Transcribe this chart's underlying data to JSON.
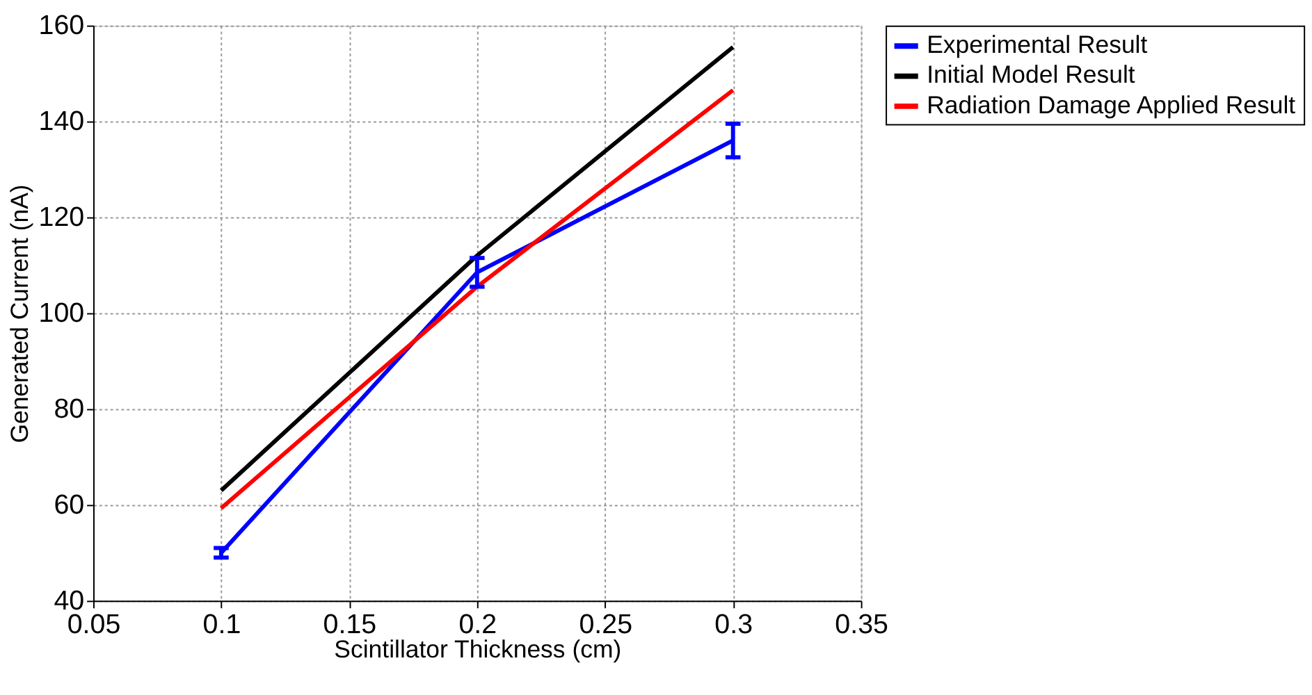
{
  "chart_data": {
    "type": "line",
    "xlabel": "Scintillator Thickness (cm)",
    "ylabel": "Generated Current (nA)",
    "x": [
      0.1,
      0.2,
      0.3
    ],
    "series": [
      {
        "name": "Experimental Result",
        "color": "#0000ff",
        "values": [
          50,
          108.5,
          136
        ],
        "errors": [
          1,
          3,
          3.5
        ]
      },
      {
        "name": "Initial Model Result",
        "color": "#000000",
        "values": [
          63,
          112,
          155.5
        ]
      },
      {
        "name": "Radiation Damage Applied Result",
        "color": "#ff0000",
        "values": [
          59.3,
          105.5,
          146.5
        ]
      }
    ],
    "xlim": [
      0.05,
      0.35
    ],
    "xticks": [
      0.05,
      0.1,
      0.15,
      0.2,
      0.25,
      0.3,
      0.35
    ],
    "ylim": [
      40,
      160
    ],
    "yticks": [
      40,
      60,
      80,
      100,
      120,
      140,
      160
    ],
    "grid": true,
    "legend": "top right",
    "line_style": "solid",
    "marker": "none"
  }
}
